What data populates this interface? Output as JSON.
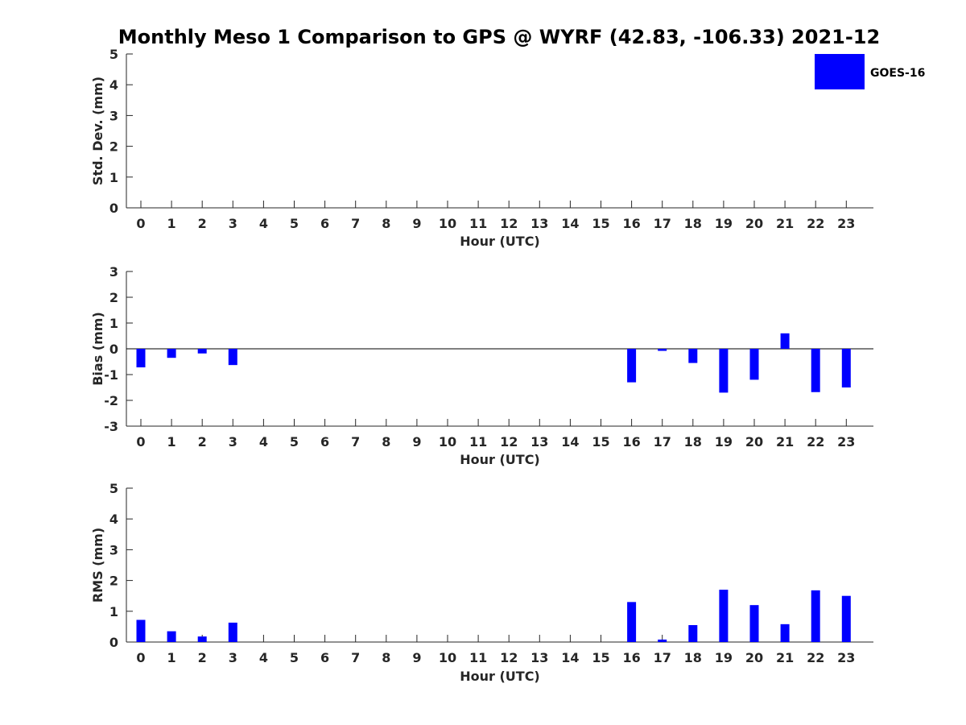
{
  "chart_data": {
    "title": "Monthly Meso 1 Comparison to GPS @ WYRF (42.83, -106.33) 2021-12",
    "legend": {
      "label": "GOES-16",
      "color": "#0000ff",
      "placement": "top-right"
    },
    "bar_color": "#0000ff",
    "panels": [
      {
        "type": "bar",
        "ylabel": "Std. Dev. (mm)",
        "xlabel": "Hour (UTC)",
        "ylim": [
          0,
          5
        ],
        "yticks": [
          "0",
          "1",
          "2",
          "3",
          "4",
          "5"
        ],
        "categories": [
          "0",
          "1",
          "2",
          "3",
          "4",
          "5",
          "6",
          "7",
          "8",
          "9",
          "10",
          "11",
          "12",
          "13",
          "14",
          "15",
          "16",
          "17",
          "18",
          "19",
          "20",
          "21",
          "22",
          "23"
        ],
        "series": [
          {
            "values": [
              null,
              null,
              null,
              null,
              null,
              null,
              null,
              null,
              null,
              null,
              null,
              null,
              null,
              null,
              null,
              null,
              null,
              null,
              null,
              null,
              null,
              null,
              null,
              null
            ]
          }
        ]
      },
      {
        "type": "bar",
        "ylabel": "Bias (mm)",
        "xlabel": "Hour (UTC)",
        "ylim": [
          -3,
          3
        ],
        "yticks": [
          "-3",
          "-2",
          "-1",
          "0",
          "1",
          "2",
          "3"
        ],
        "zero_line": true,
        "categories": [
          "0",
          "1",
          "2",
          "3",
          "4",
          "5",
          "6",
          "7",
          "8",
          "9",
          "10",
          "11",
          "12",
          "13",
          "14",
          "15",
          "16",
          "17",
          "18",
          "19",
          "20",
          "21",
          "22",
          "23"
        ],
        "series": [
          {
            "values": [
              -0.72,
              -0.35,
              -0.18,
              -0.63,
              null,
              null,
              null,
              null,
              null,
              null,
              null,
              null,
              null,
              null,
              null,
              null,
              -1.3,
              -0.08,
              -0.55,
              -1.7,
              -1.2,
              0.6,
              -1.68,
              -1.5
            ]
          }
        ]
      },
      {
        "type": "bar",
        "ylabel": "RMS (mm)",
        "xlabel": "Hour (UTC)",
        "ylim": [
          0,
          5
        ],
        "yticks": [
          "0",
          "1",
          "2",
          "3",
          "4",
          "5"
        ],
        "categories": [
          "0",
          "1",
          "2",
          "3",
          "4",
          "5",
          "6",
          "7",
          "8",
          "9",
          "10",
          "11",
          "12",
          "13",
          "14",
          "15",
          "16",
          "17",
          "18",
          "19",
          "20",
          "21",
          "22",
          "23"
        ],
        "series": [
          {
            "values": [
              0.72,
              0.35,
              0.18,
              0.63,
              null,
              null,
              null,
              null,
              null,
              null,
              null,
              null,
              null,
              null,
              null,
              null,
              1.3,
              0.08,
              0.55,
              1.7,
              1.2,
              0.58,
              1.68,
              1.5
            ]
          }
        ]
      }
    ]
  }
}
